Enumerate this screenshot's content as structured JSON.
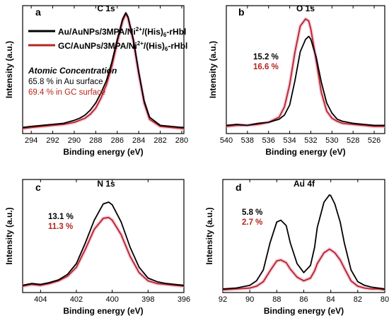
{
  "legend": {
    "entries": [
      {
        "label_main": "Au/AuNPs/3MPA/Ni",
        "label_sup": "2+",
        "label_mid": "/(His)",
        "label_sub": "6",
        "label_end": "-rHbl",
        "color": "#000000"
      },
      {
        "label_main": "GC/AuNPs/3MPA/Ni",
        "label_sup": "2+",
        "label_mid": "/(His)",
        "label_sub": "6",
        "label_end": "-rHbl",
        "color": "#b5261e"
      }
    ]
  },
  "annotation": {
    "heading": "Atomic Concentration",
    "line1": "65.8 % in Au surface",
    "line2": "69.4 % in GC surface"
  },
  "colors": {
    "au": "#000000",
    "gc": "#b5261e",
    "glow": "#f3b6d4"
  },
  "chart_data": [
    {
      "type": "line",
      "panel_letter": "a",
      "title": "C 1s",
      "xlabel": "Binding energy (eV)",
      "ylabel": "Intensity (a.u.)",
      "xlim": [
        294.8,
        279.8
      ],
      "xticks": [
        294,
        292,
        290,
        288,
        286,
        284,
        282,
        280
      ],
      "ylim": [
        0,
        1.25
      ],
      "series": [
        {
          "key": "au",
          "x": [
            294.8,
            294,
            293,
            292,
            291,
            290,
            289.5,
            289,
            288.5,
            288,
            287.5,
            287,
            286.5,
            286,
            285.5,
            285.2,
            285,
            284.5,
            284,
            283.5,
            283,
            282,
            281,
            280,
            279.8
          ],
          "y": [
            0.06,
            0.07,
            0.08,
            0.09,
            0.1,
            0.13,
            0.15,
            0.18,
            0.23,
            0.3,
            0.4,
            0.52,
            0.7,
            0.92,
            1.12,
            1.18,
            1.14,
            0.92,
            0.6,
            0.32,
            0.16,
            0.08,
            0.07,
            0.06,
            0.06
          ]
        },
        {
          "key": "gc",
          "x": [
            294.8,
            294,
            293,
            292,
            291,
            290,
            289.5,
            289,
            288.5,
            288,
            287.5,
            287,
            286.5,
            286,
            285.5,
            285.2,
            285,
            284.5,
            284,
            283.5,
            283,
            282,
            281,
            280,
            279.8
          ],
          "y": [
            0.05,
            0.06,
            0.07,
            0.08,
            0.09,
            0.11,
            0.13,
            0.15,
            0.19,
            0.25,
            0.35,
            0.48,
            0.66,
            0.89,
            1.1,
            1.17,
            1.13,
            0.9,
            0.58,
            0.3,
            0.14,
            0.07,
            0.06,
            0.05,
            0.05
          ]
        }
      ]
    },
    {
      "type": "line",
      "panel_letter": "b",
      "title": "O 1s",
      "xlabel": "Binding energy (eV)",
      "ylabel": "Intensity (a.u.)",
      "xlim": [
        540,
        525
      ],
      "xticks": [
        540,
        538,
        536,
        534,
        532,
        530,
        528,
        526
      ],
      "ylim": [
        0,
        1.25
      ],
      "labels": [
        {
          "text": "15.2 %",
          "key": "au"
        },
        {
          "text": "16.6 %",
          "key": "gc"
        }
      ],
      "series": [
        {
          "key": "au",
          "x": [
            540,
            539,
            538,
            537,
            536,
            535,
            534.5,
            534,
            533.5,
            533,
            532.5,
            532.2,
            532,
            531.5,
            531,
            530.5,
            530,
            529.5,
            529,
            528,
            527,
            526,
            525
          ],
          "y": [
            0.08,
            0.09,
            0.08,
            0.1,
            0.11,
            0.14,
            0.18,
            0.28,
            0.52,
            0.8,
            0.92,
            0.95,
            0.92,
            0.75,
            0.5,
            0.3,
            0.2,
            0.14,
            0.12,
            0.1,
            0.09,
            0.08,
            0.08
          ]
        },
        {
          "key": "gc",
          "x": [
            540,
            539,
            538,
            537,
            536,
            535,
            534.5,
            534,
            533.5,
            533,
            532.5,
            532.2,
            532,
            531.5,
            531,
            530.5,
            530,
            529.5,
            529,
            528,
            527,
            526,
            525
          ],
          "y": [
            0.07,
            0.08,
            0.08,
            0.09,
            0.11,
            0.16,
            0.26,
            0.48,
            0.8,
            1.05,
            1.12,
            1.1,
            1.02,
            0.72,
            0.4,
            0.22,
            0.15,
            0.12,
            0.1,
            0.09,
            0.08,
            0.07,
            0.07
          ]
        }
      ]
    },
    {
      "type": "line",
      "panel_letter": "c",
      "title": "N 1s",
      "xlabel": "Binding energy (eV)",
      "ylabel": "Intensity (a.u.)",
      "xlim": [
        405,
        396
      ],
      "xticks": [
        404,
        402,
        400,
        398,
        396
      ],
      "ylim": [
        0,
        1.25
      ],
      "labels": [
        {
          "text": "13.1 %",
          "key": "au"
        },
        {
          "text": "11.3 %",
          "key": "gc"
        }
      ],
      "series": [
        {
          "key": "au",
          "x": [
            405,
            404.5,
            404,
            403.5,
            403,
            402.5,
            402,
            401.5,
            401,
            400.5,
            400.2,
            400,
            399.5,
            399,
            398.5,
            398,
            397.5,
            397,
            396.5,
            396
          ],
          "y": [
            0.08,
            0.1,
            0.09,
            0.11,
            0.14,
            0.2,
            0.32,
            0.55,
            0.8,
            0.98,
            1.0,
            0.97,
            0.78,
            0.5,
            0.28,
            0.16,
            0.12,
            0.1,
            0.09,
            0.08
          ]
        },
        {
          "key": "gc",
          "x": [
            405,
            404.5,
            404,
            403.5,
            403,
            402.5,
            402,
            401.5,
            401,
            400.5,
            400.2,
            400,
            399.5,
            399,
            398.5,
            398,
            397.5,
            397,
            396.5,
            396
          ],
          "y": [
            0.07,
            0.09,
            0.08,
            0.1,
            0.13,
            0.18,
            0.28,
            0.48,
            0.7,
            0.82,
            0.83,
            0.8,
            0.64,
            0.4,
            0.22,
            0.13,
            0.1,
            0.09,
            0.08,
            0.07
          ]
        }
      ]
    },
    {
      "type": "line",
      "panel_letter": "d",
      "title": "Au 4f",
      "xlabel": "Binding energy (eV)",
      "ylabel": "Intensity (a.u.)",
      "xlim": [
        92,
        80
      ],
      "xticks": [
        92,
        90,
        88,
        86,
        84,
        82,
        80
      ],
      "ylim": [
        0,
        1.25
      ],
      "labels": [
        {
          "text": "5.8 %",
          "key": "au"
        },
        {
          "text": "2.7 %",
          "key": "gc"
        }
      ],
      "series": [
        {
          "key": "au",
          "x": [
            92,
            91,
            90,
            89.5,
            89,
            88.5,
            88,
            87.7,
            87.3,
            87,
            86.5,
            86,
            85.5,
            85.2,
            85,
            84.5,
            84.1,
            84,
            83.7,
            83.3,
            83,
            82.5,
            82,
            81.5,
            81,
            80.5,
            80
          ],
          "y": [
            0.04,
            0.05,
            0.08,
            0.13,
            0.25,
            0.55,
            0.78,
            0.8,
            0.74,
            0.55,
            0.32,
            0.22,
            0.3,
            0.5,
            0.72,
            1.0,
            1.08,
            1.07,
            0.98,
            0.78,
            0.55,
            0.25,
            0.12,
            0.08,
            0.06,
            0.05,
            0.04
          ]
        },
        {
          "key": "gc",
          "x": [
            92,
            91,
            90,
            89.5,
            89,
            88.5,
            88,
            87.7,
            87.3,
            87,
            86.5,
            86,
            85.5,
            85.2,
            85,
            84.5,
            84.1,
            84,
            83.7,
            83.3,
            83,
            82.5,
            82,
            81.5,
            81,
            80.5,
            80
          ],
          "y": [
            0.03,
            0.04,
            0.05,
            0.07,
            0.12,
            0.24,
            0.35,
            0.36,
            0.33,
            0.26,
            0.17,
            0.13,
            0.16,
            0.24,
            0.32,
            0.44,
            0.48,
            0.47,
            0.44,
            0.36,
            0.27,
            0.13,
            0.07,
            0.05,
            0.04,
            0.04,
            0.03
          ]
        }
      ]
    }
  ]
}
